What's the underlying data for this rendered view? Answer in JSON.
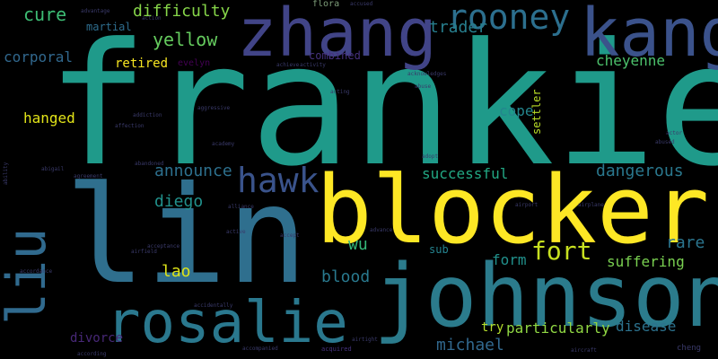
{
  "words": [
    {
      "text": "frankie",
      "color": "#1f9a8a"
    },
    {
      "text": "blocker",
      "color": "#fde725"
    },
    {
      "text": "lin",
      "color": "#2f6f8e"
    },
    {
      "text": "johnson",
      "color": "#2b7b8c"
    },
    {
      "text": "zhang",
      "color": "#414487"
    },
    {
      "text": "kang",
      "color": "#3b528b"
    },
    {
      "text": "rosalie",
      "color": "#2a788e"
    },
    {
      "text": "liu",
      "color": "#306a8e"
    },
    {
      "text": "rooney",
      "color": "#2c6f8e"
    },
    {
      "text": "hawk",
      "color": "#3a538b"
    },
    {
      "text": "fort",
      "color": "#c7e020"
    },
    {
      "text": "cure",
      "color": "#3dbc74"
    },
    {
      "text": "difficulty",
      "color": "#86d549"
    },
    {
      "text": "yellow",
      "color": "#65cb5e"
    },
    {
      "text": "trader",
      "color": "#277f8e"
    },
    {
      "text": "corporal",
      "color": "#31688e"
    },
    {
      "text": "martial",
      "color": "#2e6d8e"
    },
    {
      "text": "retired",
      "color": "#f8e621"
    },
    {
      "text": "hanged",
      "color": "#e2e418"
    },
    {
      "text": "cheyenne",
      "color": "#4cc26c"
    },
    {
      "text": "cope",
      "color": "#24868e"
    },
    {
      "text": "settler",
      "color": "#bade28"
    },
    {
      "text": "dangerous",
      "color": "#2a788e"
    },
    {
      "text": "successful",
      "color": "#22a884"
    },
    {
      "text": "announce",
      "color": "#2d708e"
    },
    {
      "text": "diego",
      "color": "#21918c"
    },
    {
      "text": "wu",
      "color": "#35b779"
    },
    {
      "text": "rare",
      "color": "#2b758e"
    },
    {
      "text": "suffering",
      "color": "#7ad151"
    },
    {
      "text": "lao",
      "color": "#dde318"
    },
    {
      "text": "form",
      "color": "#21918c"
    },
    {
      "text": "blood",
      "color": "#29798e"
    },
    {
      "text": "sub",
      "color": "#25838e"
    },
    {
      "text": "particularly",
      "color": "#90d743"
    },
    {
      "text": "disease",
      "color": "#2c728e"
    },
    {
      "text": "try",
      "color": "#b5de2b"
    },
    {
      "text": "divorce",
      "color": "#482878"
    },
    {
      "text": "michael",
      "color": "#31688e"
    },
    {
      "text": "evelyn",
      "color": "#440154"
    },
    {
      "text": "combined",
      "color": "#46317e"
    },
    {
      "text": "flora",
      "color": "#7e9e7a"
    },
    {
      "text": "abandoned",
      "color": "#3a3a6a"
    },
    {
      "text": "abigail",
      "color": "#3a3a6a"
    },
    {
      "text": "academy",
      "color": "#3a3a6a"
    },
    {
      "text": "acceptance",
      "color": "#3a3a6a"
    },
    {
      "text": "accompanied",
      "color": "#3a3a6a"
    },
    {
      "text": "accused",
      "color": "#3a3a6a"
    },
    {
      "text": "achieve",
      "color": "#3a3a6a"
    },
    {
      "text": "acquired",
      "color": "#46327e"
    },
    {
      "text": "acting",
      "color": "#3a3a6a"
    },
    {
      "text": "action",
      "color": "#3a3a6a"
    },
    {
      "text": "activity",
      "color": "#3a3a6a"
    },
    {
      "text": "actor",
      "color": "#3a3a6a"
    },
    {
      "text": "addiction",
      "color": "#3a3a6a"
    },
    {
      "text": "adopt",
      "color": "#3a3a6a"
    },
    {
      "text": "advance",
      "color": "#3a3a6a"
    },
    {
      "text": "advantage",
      "color": "#3a3a6a"
    },
    {
      "text": "affection",
      "color": "#3a3a6a"
    },
    {
      "text": "agreement",
      "color": "#3a3a6a"
    },
    {
      "text": "aggressive",
      "color": "#3a3a6a"
    },
    {
      "text": "airport",
      "color": "#3a3a6a"
    },
    {
      "text": "airplane",
      "color": "#3a3a6a"
    },
    {
      "text": "airfield",
      "color": "#3a3a6a"
    },
    {
      "text": "airtight",
      "color": "#3a3a6a"
    },
    {
      "text": "aircraft",
      "color": "#3a3a6a"
    },
    {
      "text": "alliance",
      "color": "#3a3a6a"
    },
    {
      "text": "ability",
      "color": "#3a3a6a"
    },
    {
      "text": "accordance",
      "color": "#3a3a6a"
    },
    {
      "text": "according",
      "color": "#3a3a6a"
    },
    {
      "text": "accidentally",
      "color": "#3a3a6a"
    },
    {
      "text": "acknowledges",
      "color": "#3a3a6a"
    },
    {
      "text": "abused",
      "color": "#3a3a6a"
    },
    {
      "text": "abuse",
      "color": "#3a3a6a"
    },
    {
      "text": "cheng",
      "color": "#3a3a6a"
    },
    {
      "text": "active",
      "color": "#3a3a6a"
    },
    {
      "text": "accept",
      "color": "#3a3a6a"
    }
  ]
}
